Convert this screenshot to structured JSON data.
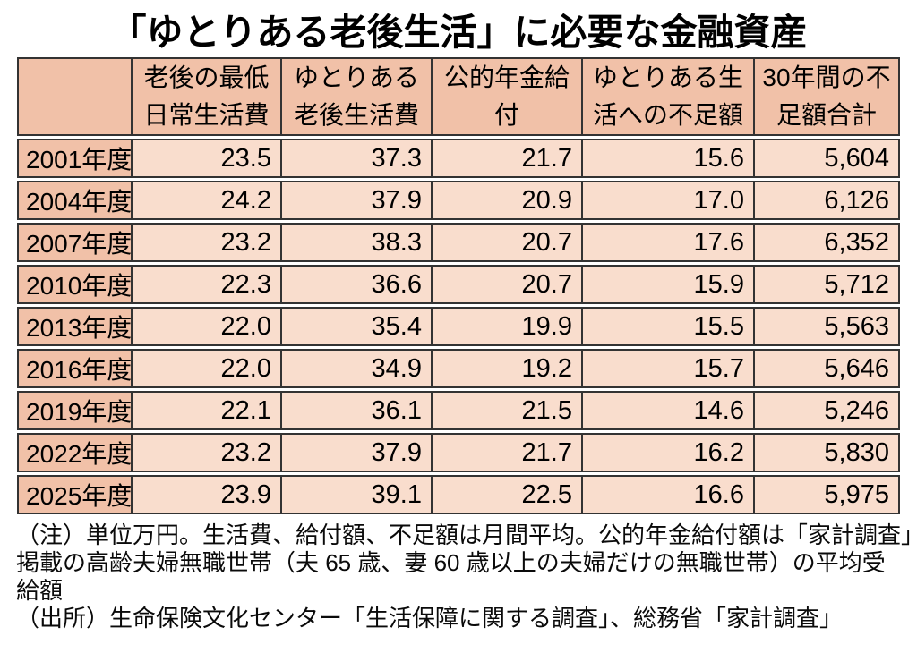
{
  "page": {
    "title": "「ゆとりある老後生活」に必要な金融資産"
  },
  "colors": {
    "header_bg": "#F1C1A8",
    "cell_bg": "#F9DDCD",
    "border": "#333333",
    "text": "#000000",
    "page_bg": "#FFFFFF"
  },
  "table": {
    "header": [
      {
        "line1": "",
        "line2": ""
      },
      {
        "line1": "老後の最低",
        "line2": "日常生活費"
      },
      {
        "line1": "ゆとりある",
        "line2": "老後生活費"
      },
      {
        "line1": "公的年金給",
        "line2": "付"
      },
      {
        "line1": "ゆとりある生",
        "line2": "活への不足額"
      },
      {
        "line1": "30年間の不",
        "line2": "足額合計"
      }
    ],
    "rows": [
      {
        "year": "2001年度",
        "values": [
          "23.5",
          "37.3",
          "21.7",
          "15.6",
          "5,604"
        ]
      },
      {
        "year": "2004年度",
        "values": [
          "24.2",
          "37.9",
          "20.9",
          "17.0",
          "6,126"
        ]
      },
      {
        "year": "2007年度",
        "values": [
          "23.2",
          "38.3",
          "20.7",
          "17.6",
          "6,352"
        ]
      },
      {
        "year": "2010年度",
        "values": [
          "22.3",
          "36.6",
          "20.7",
          "15.9",
          "5,712"
        ]
      },
      {
        "year": "2013年度",
        "values": [
          "22.0",
          "35.4",
          "19.9",
          "15.5",
          "5,563"
        ]
      },
      {
        "year": "2016年度",
        "values": [
          "22.0",
          "34.9",
          "19.2",
          "15.7",
          "5,646"
        ]
      },
      {
        "year": "2019年度",
        "values": [
          "22.1",
          "36.1",
          "21.5",
          "14.6",
          "5,246"
        ]
      },
      {
        "year": "2022年度",
        "values": [
          "23.2",
          "37.9",
          "21.7",
          "16.2",
          "5,830"
        ]
      },
      {
        "year": "2025年度",
        "values": [
          "23.9",
          "39.1",
          "22.5",
          "16.6",
          "5,975"
        ]
      }
    ]
  },
  "notes": {
    "lines": [
      "（注）単位万円。生活費、給付額、不足額は月間平均。公的年金給付額は「家計調査」",
      "掲載の高齢夫婦無職世帯（夫 65 歳、妻 60 歳以上の夫婦だけの無職世帯）の平均受",
      "給額",
      "（出所）生命保険文化センター「生活保障に関する調査」、総務省「家計調査」"
    ]
  },
  "chart_data": {
    "type": "table",
    "title": "「ゆとりある老後生活」に必要な金融資産",
    "columns": [
      "年度",
      "老後の最低日常生活費",
      "ゆとりある老後生活費",
      "公的年金給付",
      "ゆとりある生活への不足額",
      "30年間の不足額合計"
    ],
    "rows": [
      {
        "year": "2001年度",
        "values": [
          23.5,
          37.3,
          21.7,
          15.6,
          5604
        ]
      },
      {
        "year": "2004年度",
        "values": [
          24.2,
          37.9,
          20.9,
          17.0,
          6126
        ]
      },
      {
        "year": "2007年度",
        "values": [
          23.2,
          38.3,
          20.7,
          17.6,
          6352
        ]
      },
      {
        "year": "2010年度",
        "values": [
          22.3,
          36.6,
          20.7,
          15.9,
          5712
        ]
      },
      {
        "year": "2013年度",
        "values": [
          22.0,
          35.4,
          19.9,
          15.5,
          5563
        ]
      },
      {
        "year": "2016年度",
        "values": [
          22.0,
          34.9,
          19.2,
          15.7,
          5646
        ]
      },
      {
        "year": "2019年度",
        "values": [
          22.1,
          36.1,
          21.5,
          14.6,
          5246
        ]
      },
      {
        "year": "2022年度",
        "values": [
          23.2,
          37.9,
          21.7,
          16.2,
          5830
        ]
      },
      {
        "year": "2025年度",
        "values": [
          23.9,
          39.1,
          22.5,
          16.6,
          5975
        ]
      }
    ],
    "annotations": [
      "（注）単位万円。生活費、給付額、不足額は月間平均。公的年金給付額は「家計調査」掲載の高齢夫婦無職世帯（夫 65 歳、妻 60 歳以上の夫婦だけの無職世帯）の平均受給額",
      "（出所）生命保険文化センター「生活保障に関する調査」、総務省「家計調査」"
    ]
  }
}
